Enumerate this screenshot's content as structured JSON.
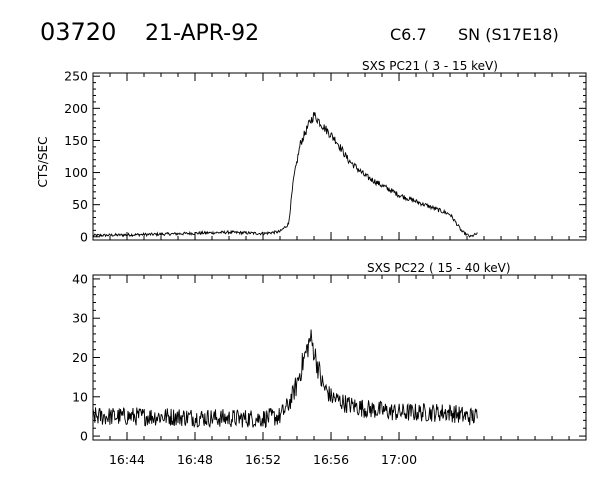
{
  "header": {
    "event_id": "03720",
    "date": "21-APR-92",
    "goes_class": "C6.7",
    "location": "SN (S17E18)"
  },
  "chart_data": [
    {
      "type": "line",
      "title": "SXS PC21  (  3 - 15 keV)",
      "ylabel": "CTS/SEC",
      "ylim": [
        -5,
        255
      ],
      "yticks": [
        0,
        50,
        100,
        150,
        200,
        250
      ],
      "xlim_minutes": [
        16.7,
        17.1833
      ],
      "xticks": [
        "16:44",
        "16:48",
        "16:52",
        "16:56",
        "17:00"
      ],
      "show_x_tick_labels": false,
      "series": [
        {
          "x_minutes": [
            16.7,
            16.7667,
            16.8333,
            16.8667,
            16.8833,
            16.8917,
            16.8967,
            16.9033,
            16.9117,
            16.9167,
            16.9267,
            16.9383,
            16.95,
            16.9667,
            16.9833,
            17.0,
            17.0167,
            17.0333,
            17.05,
            17.0567,
            17.0617,
            17.07,
            17.0767
          ],
          "values": [
            2,
            4,
            7,
            5,
            8,
            20,
            90,
            145,
            175,
            190,
            170,
            150,
            120,
            95,
            80,
            65,
            55,
            45,
            35,
            20,
            8,
            0,
            5
          ],
          "noise": 3.5
        }
      ]
    },
    {
      "type": "line",
      "title": "SXS PC22  ( 15 - 40 keV)",
      "ylabel": "",
      "ylim": [
        -1,
        41
      ],
      "yticks": [
        0,
        10,
        20,
        30,
        40
      ],
      "xlim_minutes": [
        16.7,
        17.1833
      ],
      "xticks": [
        "16:44",
        "16:48",
        "16:52",
        "16:56",
        "17:00"
      ],
      "show_x_tick_labels": true,
      "series": [
        {
          "x_minutes": [
            16.7,
            16.7667,
            16.8333,
            16.8667,
            16.8833,
            16.8917,
            16.8983,
            16.905,
            16.9133,
            16.9183,
            16.925,
            16.9333,
            16.95,
            16.9667,
            16.9833,
            17.0,
            17.0167,
            17.0333,
            17.05,
            17.0667,
            17.0767
          ],
          "values": [
            5,
            5,
            4.5,
            4.5,
            5,
            8,
            12,
            18,
            25,
            20,
            13,
            10,
            8,
            7,
            6.5,
            6,
            6,
            6,
            6,
            5,
            5
          ],
          "noise": 2.4
        }
      ]
    }
  ]
}
